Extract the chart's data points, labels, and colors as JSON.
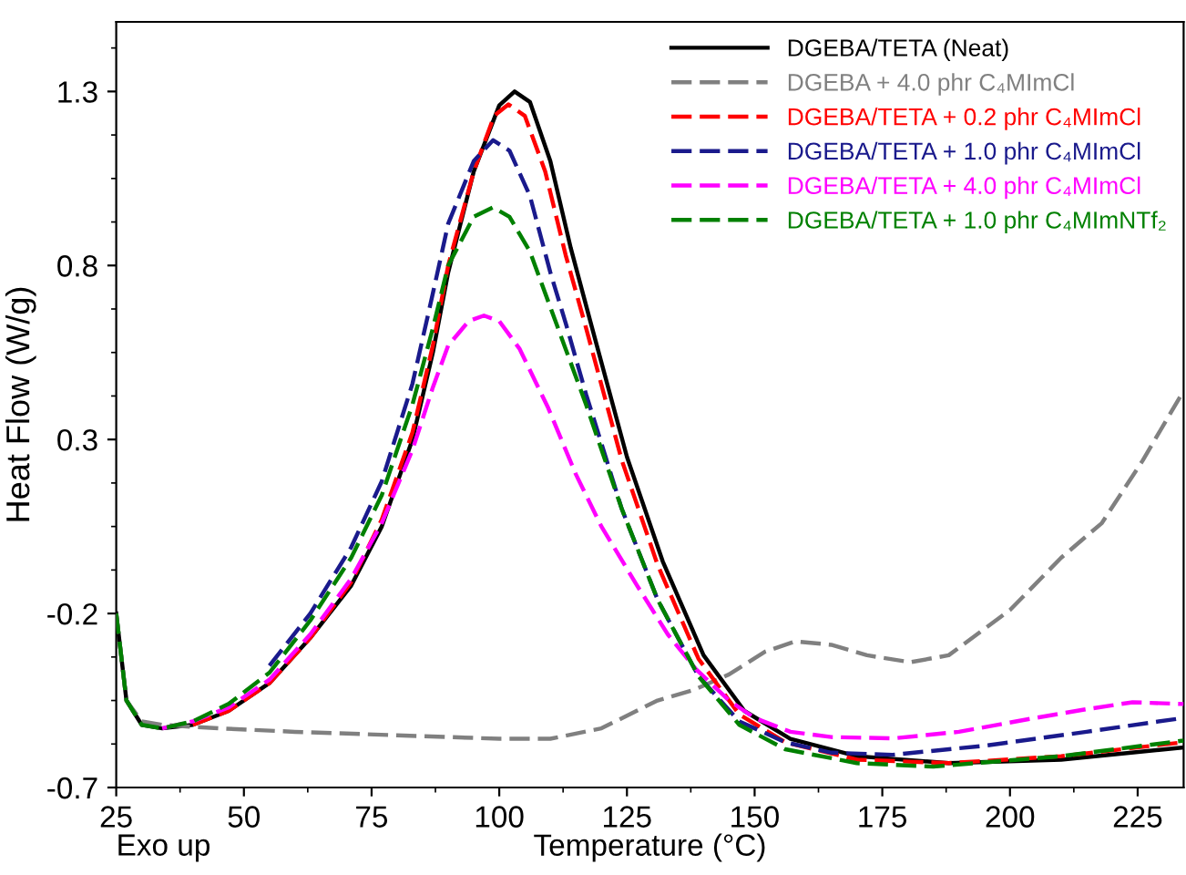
{
  "chart_data": {
    "type": "line",
    "xlabel": "Temperature (°C)",
    "ylabel": "Heat Flow (W/g)",
    "annotations": [
      "Exo up"
    ],
    "xlim": [
      25,
      234
    ],
    "xticks": [
      25,
      50,
      75,
      100,
      125,
      150,
      175,
      200,
      225
    ],
    "ylim": [
      -0.7,
      1.5
    ],
    "yticks": [
      -0.7,
      -0.2,
      0.3,
      0.8,
      1.3
    ],
    "grid": false,
    "legend": "top right",
    "marker": "none",
    "series": [
      {
        "name": "DGEBA/TETA (Neat)",
        "color": "#000000",
        "line_style": "solid",
        "x": [
          25,
          27,
          30,
          34,
          40,
          47,
          55,
          63,
          71,
          77,
          83,
          87,
          90,
          95,
          100,
          103,
          106,
          110,
          114,
          118,
          125,
          132,
          140,
          148,
          157,
          170,
          188,
          210,
          234
        ],
        "values": [
          -0.2,
          -0.45,
          -0.52,
          -0.53,
          -0.52,
          -0.48,
          -0.4,
          -0.27,
          -0.12,
          0.05,
          0.3,
          0.55,
          0.78,
          1.07,
          1.26,
          1.3,
          1.27,
          1.1,
          0.85,
          0.63,
          0.25,
          -0.05,
          -0.32,
          -0.48,
          -0.56,
          -0.61,
          -0.63,
          -0.62,
          -0.585
        ]
      },
      {
        "name": "DGEBA + 4.0 phr C₄MImCl",
        "color": "#808080",
        "line_style": "dashed",
        "x": [
          25,
          27,
          30,
          34,
          45,
          60,
          80,
          100,
          110,
          120,
          131,
          138,
          145,
          152,
          158,
          165,
          172,
          180.5,
          188,
          200,
          210,
          218,
          226,
          234
        ],
        "values": [
          -0.2,
          -0.45,
          -0.51,
          -0.52,
          -0.53,
          -0.54,
          -0.55,
          -0.56,
          -0.56,
          -0.53,
          -0.45,
          -0.42,
          -0.375,
          -0.31,
          -0.28,
          -0.29,
          -0.32,
          -0.34,
          -0.32,
          -0.19,
          -0.04,
          0.06,
          0.24,
          0.44
        ]
      },
      {
        "name": "DGEBA/TETA + 0.2 phr C₄MImCl",
        "color": "#ff0000",
        "line_style": "dashed",
        "x": [
          40,
          47,
          55,
          63,
          71,
          77,
          83,
          87,
          90,
          95,
          99,
          101.8,
          105,
          109,
          113,
          117,
          124,
          131,
          139,
          147,
          156,
          170,
          188,
          210,
          234
        ],
        "values": [
          -0.52,
          -0.48,
          -0.4,
          -0.27,
          -0.11,
          0.07,
          0.32,
          0.57,
          0.8,
          1.07,
          1.23,
          1.263,
          1.23,
          1.07,
          0.83,
          0.62,
          0.24,
          -0.06,
          -0.33,
          -0.49,
          -0.57,
          -0.62,
          -0.63,
          -0.61,
          -0.57
        ]
      },
      {
        "name": "DGEBA/TETA + 1.0 phr C₄MImCl",
        "color": "#1a1a8c",
        "line_style": "dashed",
        "x": [
          55,
          63,
          71,
          77,
          83,
          87,
          90,
          95,
          98.8,
          102,
          106,
          110,
          113,
          117,
          124,
          131,
          139,
          147,
          156,
          165,
          177,
          195,
          215,
          234
        ],
        "values": [
          -0.35,
          -0.2,
          -0.01,
          0.18,
          0.46,
          0.72,
          0.92,
          1.1,
          1.16,
          1.13,
          1.0,
          0.78,
          0.635,
          0.43,
          0.1,
          -0.16,
          -0.38,
          -0.51,
          -0.57,
          -0.6,
          -0.606,
          -0.58,
          -0.54,
          -0.5
        ]
      },
      {
        "name": "DGEBA/TETA + 4.0 phr C₄MImCl",
        "color": "#ff00ff",
        "line_style": "dashed",
        "x": [
          34,
          40,
          47,
          55,
          63,
          71,
          77,
          83,
          87,
          90,
          94,
          97,
          100,
          104,
          109.6,
          115,
          120,
          127,
          133,
          138.5,
          145,
          150,
          157,
          165,
          177,
          190,
          205,
          215,
          224,
          234
        ],
        "values": [
          -0.53,
          -0.51,
          -0.47,
          -0.39,
          -0.26,
          -0.1,
          0.06,
          0.27,
          0.45,
          0.57,
          0.64,
          0.656,
          0.64,
          0.56,
          0.39,
          0.2,
          0.05,
          -0.12,
          -0.26,
          -0.36,
          -0.45,
          -0.5,
          -0.54,
          -0.555,
          -0.559,
          -0.54,
          -0.5,
          -0.475,
          -0.455,
          -0.46
        ]
      },
      {
        "name": "DGEBA/TETA + 1.0 phr C₄MImNTf₂",
        "color": "#008000",
        "line_style": "dashed",
        "x": [
          25,
          27,
          30,
          34,
          40,
          47,
          55,
          63,
          71,
          77,
          83,
          87,
          90,
          95,
          98.8,
          102,
          106,
          110,
          113,
          117,
          124,
          131,
          139,
          147,
          156,
          170,
          185,
          210,
          234
        ],
        "values": [
          -0.2,
          -0.45,
          -0.52,
          -0.53,
          -0.51,
          -0.46,
          -0.37,
          -0.22,
          -0.04,
          0.14,
          0.4,
          0.62,
          0.8,
          0.94,
          0.967,
          0.94,
          0.84,
          0.68,
          0.56,
          0.4,
          0.1,
          -0.16,
          -0.38,
          -0.52,
          -0.59,
          -0.63,
          -0.64,
          -0.61,
          -0.565
        ]
      }
    ]
  }
}
